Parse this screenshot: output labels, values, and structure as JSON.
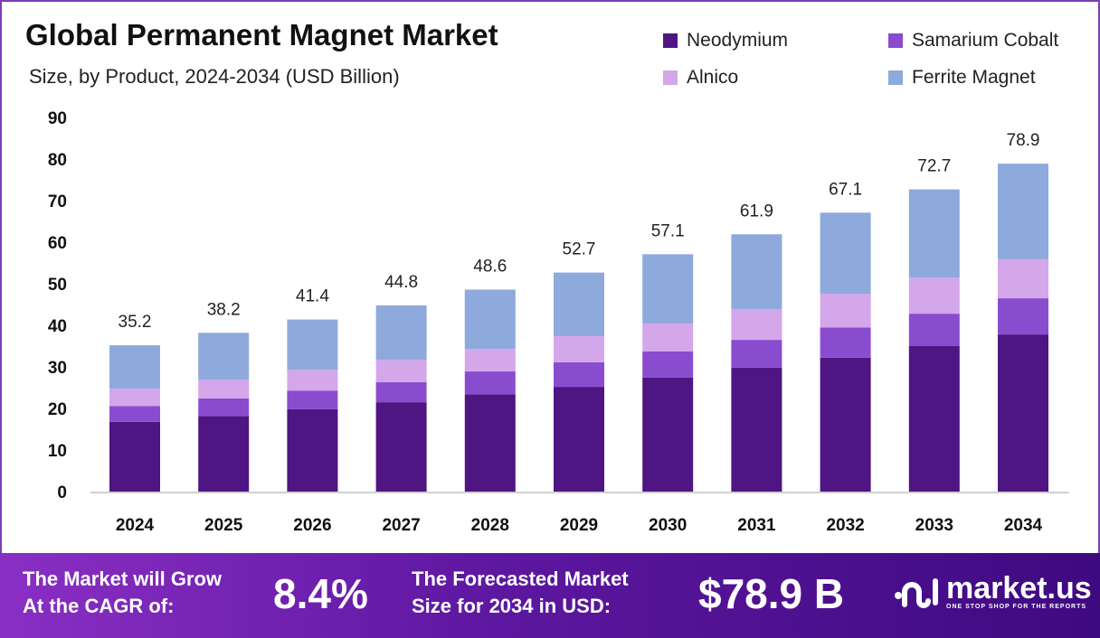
{
  "chart_data": {
    "type": "bar",
    "stacked": true,
    "title": "Global Permanent Magnet Market",
    "subtitle": "Size, by Product, 2024-2034 (USD Billion)",
    "categories": [
      "2024",
      "2025",
      "2026",
      "2027",
      "2028",
      "2029",
      "2030",
      "2031",
      "2032",
      "2033",
      "2034"
    ],
    "series": [
      {
        "name": "Neodymium",
        "color": "#4f1582",
        "values": [
          16.8,
          18.2,
          19.8,
          21.5,
          23.4,
          25.2,
          27.4,
          29.8,
          32.2,
          35.0,
          37.8
        ]
      },
      {
        "name": "Samarium Cobalt",
        "color": "#8a4ccf",
        "values": [
          3.8,
          4.2,
          4.5,
          4.8,
          5.5,
          5.9,
          6.3,
          6.7,
          7.3,
          7.8,
          8.7
        ]
      },
      {
        "name": "Alnico",
        "color": "#d4a6ea",
        "values": [
          4.2,
          4.5,
          5.0,
          5.4,
          5.4,
          6.3,
          6.7,
          7.4,
          8.1,
          8.7,
          9.4
        ]
      },
      {
        "name": "Ferrite Magnet",
        "color": "#8eaadc",
        "values": [
          10.4,
          11.3,
          12.1,
          13.1,
          14.3,
          15.3,
          16.7,
          18.0,
          19.5,
          21.2,
          23.0
        ]
      }
    ],
    "totals": [
      "35.2",
      "38.2",
      "41.4",
      "44.8",
      "48.6",
      "52.7",
      "57.1",
      "61.9",
      "67.1",
      "72.7",
      "78.9"
    ],
    "ylim": [
      0,
      90
    ],
    "yticks": [
      "0",
      "10",
      "20",
      "30",
      "40",
      "50",
      "60",
      "70",
      "80",
      "90"
    ],
    "grid": false,
    "legend_position": "top-right"
  },
  "footer": {
    "cagr_label_1": "The Market will Grow",
    "cagr_label_2": "At the CAGR of:",
    "cagr_value": "8.4%",
    "forecast_label_1": "The Forecasted Market",
    "forecast_label_2": "Size for 2034 in USD:",
    "forecast_value": "$78.9 B",
    "logo_name": "market.us",
    "logo_tagline": "ONE STOP SHOP FOR THE REPORTS"
  }
}
